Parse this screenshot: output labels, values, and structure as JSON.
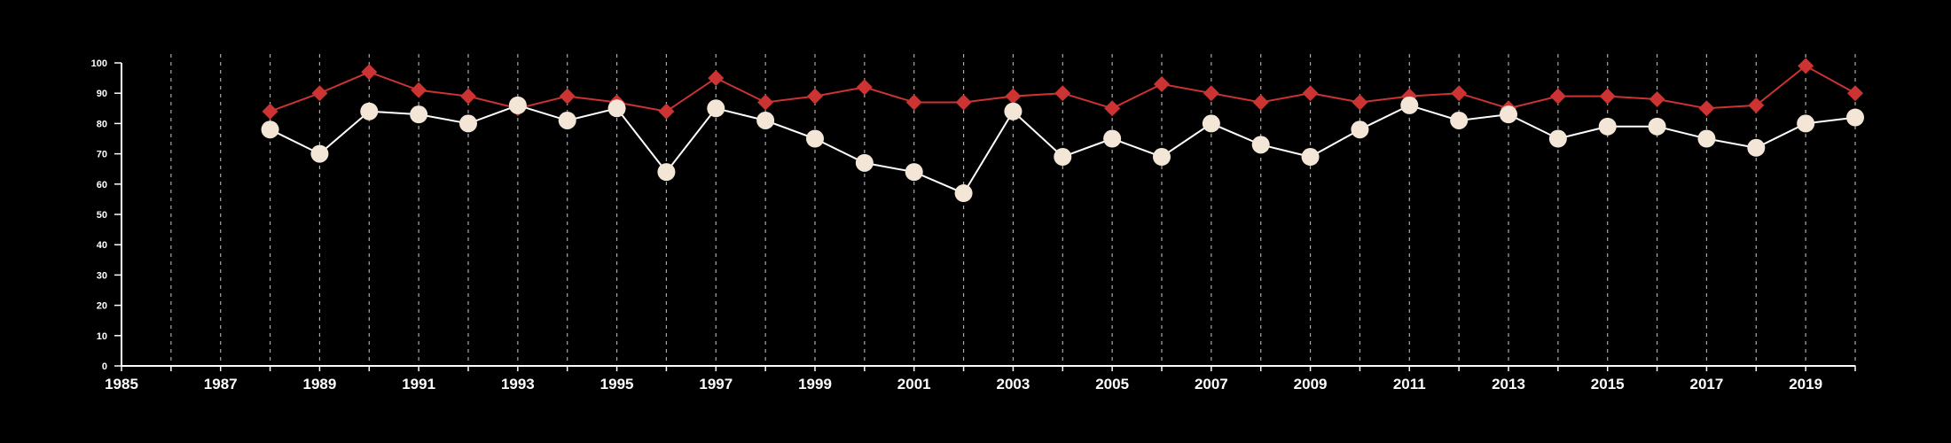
{
  "chart_data": {
    "type": "line",
    "title": "",
    "xlabel": "",
    "ylabel": "",
    "xlim": [
      1985,
      2020
    ],
    "ylim": [
      0,
      100
    ],
    "x_ticks": [
      1985,
      1987,
      1989,
      1991,
      1993,
      1995,
      1997,
      1999,
      2001,
      2003,
      2005,
      2007,
      2009,
      2011,
      2013,
      2015,
      2017,
      2019
    ],
    "y_ticks": [
      0,
      10,
      20,
      30,
      40,
      50,
      60,
      70,
      80,
      90,
      100
    ],
    "grid": "vertical dashed lines at every year",
    "legend": "none",
    "series": [
      {
        "marker": "diamond",
        "color": "#cc3333",
        "line_color": "#cc3333",
        "x": [
          1988,
          1989,
          1990,
          1991,
          1992,
          1993,
          1994,
          1995,
          1996,
          1997,
          1998,
          1999,
          2000,
          2001,
          2002,
          2003,
          2004,
          2005,
          2006,
          2007,
          2008,
          2009,
          2010,
          2011,
          2012,
          2013,
          2014,
          2015,
          2016,
          2017,
          2018,
          2019,
          2020
        ],
        "values": [
          84,
          90,
          97,
          91,
          89,
          85,
          89,
          87,
          84,
          95,
          87,
          89,
          92,
          87,
          87,
          89,
          90,
          85,
          93,
          90,
          87,
          90,
          87,
          89,
          90,
          85,
          89,
          89,
          88,
          85,
          86,
          99,
          90
        ]
      },
      {
        "marker": "circle",
        "color": "#f3e6d6",
        "line_color": "#ffffff",
        "x": [
          1988,
          1989,
          1990,
          1991,
          1992,
          1993,
          1994,
          1995,
          1996,
          1997,
          1998,
          1999,
          2000,
          2001,
          2002,
          2003,
          2004,
          2005,
          2006,
          2007,
          2008,
          2009,
          2010,
          2011,
          2012,
          2013,
          2014,
          2015,
          2016,
          2017,
          2018,
          2019,
          2020
        ],
        "values": [
          78,
          70,
          84,
          83,
          80,
          86,
          81,
          85,
          64,
          85,
          81,
          75,
          67,
          64,
          57,
          84,
          69,
          75,
          69,
          80,
          73,
          69,
          78,
          86,
          81,
          83,
          75,
          79,
          79,
          75,
          72,
          80,
          82
        ]
      }
    ]
  },
  "colors": {
    "background": "#000000",
    "axis": "#ffffff",
    "grid": "#aaaaaa"
  }
}
